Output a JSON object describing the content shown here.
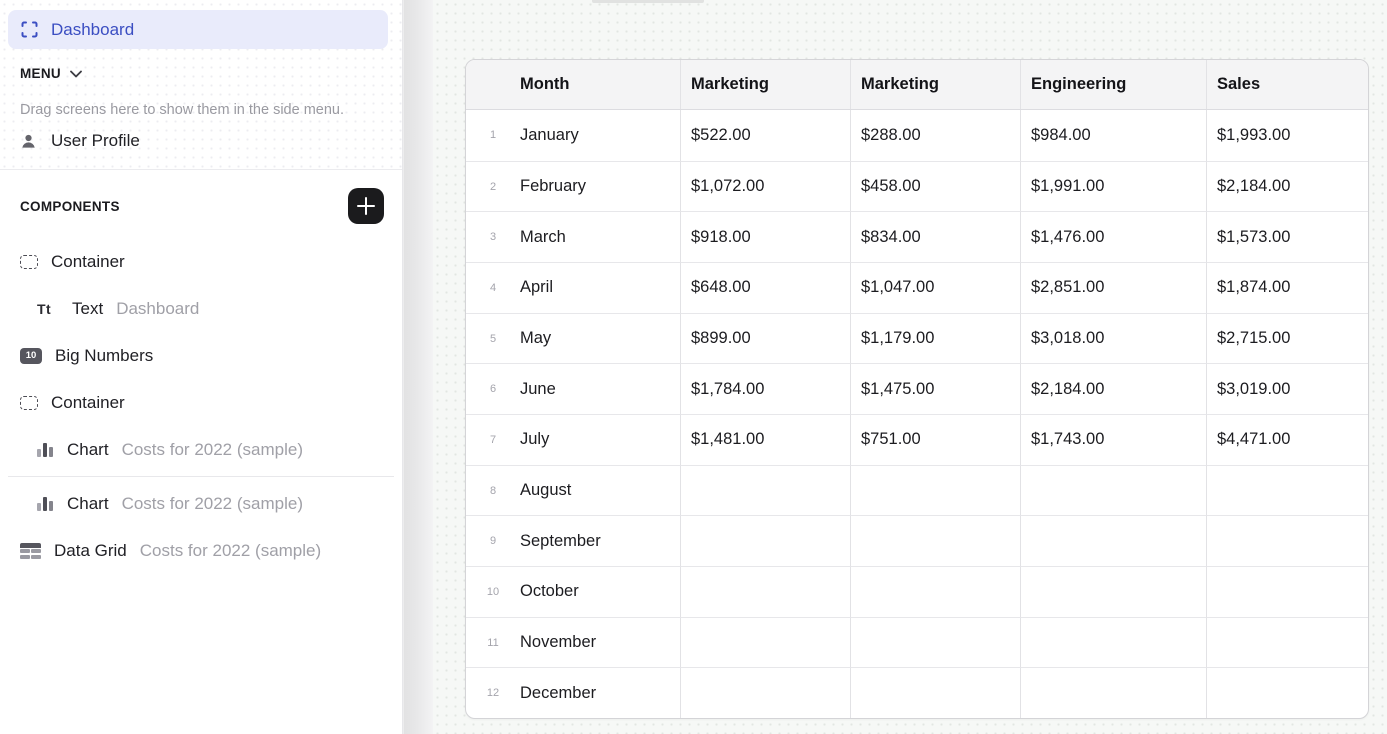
{
  "colors": {
    "accent_text": "#3b4ec2",
    "accent_bg": "#e9ebfb",
    "add_button_bg": "#1b1b1d",
    "canvas_bg": "#f6f8f6",
    "table_header_bg": "#f4f4f5"
  },
  "sidebar": {
    "selected_screen": {
      "label": "Dashboard",
      "icon": "screen-frame-icon"
    },
    "menu_section": {
      "title": "MENU",
      "chevron_icon": "chevron-down-icon",
      "helper": "Drag screens here to show them in the side menu.",
      "items": [
        {
          "label": "User Profile",
          "icon": "user-icon"
        }
      ]
    },
    "components_section": {
      "title": "COMPONENTS",
      "add_button_icon": "plus-icon",
      "items": [
        {
          "label": "Container",
          "secondary": "",
          "icon": "container-icon",
          "indent": 0
        },
        {
          "label": "Text",
          "secondary": "Dashboard",
          "icon": "text-icon",
          "indent": 1
        },
        {
          "label": "Big Numbers",
          "secondary": "",
          "icon": "big-numbers-icon",
          "indent": 0
        },
        {
          "label": "Container",
          "secondary": "",
          "icon": "container-icon",
          "indent": 0
        },
        {
          "label": "Chart",
          "secondary": "Costs for 2022 (sample)",
          "icon": "chart-icon",
          "indent": 1
        },
        {
          "divider": true
        },
        {
          "label": "Chart",
          "secondary": "Costs for 2022 (sample)",
          "icon": "chart-icon",
          "indent": 1
        },
        {
          "label": "Data Grid",
          "secondary": "Costs for 2022 (sample)",
          "icon": "data-grid-icon",
          "indent": 0
        }
      ],
      "big_numbers_badge": "10",
      "text_icon_glyph": "Tt"
    }
  },
  "canvas": {
    "table": {
      "columns": [
        "Month",
        "Marketing",
        "Marketing",
        "Engineering",
        "Sales"
      ],
      "rows": [
        {
          "num": "1",
          "month": "January",
          "values": [
            "$522.00",
            "$288.00",
            "$984.00",
            "$1,993.00"
          ]
        },
        {
          "num": "2",
          "month": "February",
          "values": [
            "$1,072.00",
            "$458.00",
            "$1,991.00",
            "$2,184.00"
          ]
        },
        {
          "num": "3",
          "month": "March",
          "values": [
            "$918.00",
            "$834.00",
            "$1,476.00",
            "$1,573.00"
          ]
        },
        {
          "num": "4",
          "month": "April",
          "values": [
            "$648.00",
            "$1,047.00",
            "$2,851.00",
            "$1,874.00"
          ]
        },
        {
          "num": "5",
          "month": "May",
          "values": [
            "$899.00",
            "$1,179.00",
            "$3,018.00",
            "$2,715.00"
          ]
        },
        {
          "num": "6",
          "month": "June",
          "values": [
            "$1,784.00",
            "$1,475.00",
            "$2,184.00",
            "$3,019.00"
          ]
        },
        {
          "num": "7",
          "month": "July",
          "values": [
            "$1,481.00",
            "$751.00",
            "$1,743.00",
            "$4,471.00"
          ]
        },
        {
          "num": "8",
          "month": "August",
          "values": [
            "",
            "",
            "",
            ""
          ]
        },
        {
          "num": "9",
          "month": "September",
          "values": [
            "",
            "",
            "",
            ""
          ]
        },
        {
          "num": "10",
          "month": "October",
          "values": [
            "",
            "",
            "",
            ""
          ]
        },
        {
          "num": "11",
          "month": "November",
          "values": [
            "",
            "",
            "",
            ""
          ]
        },
        {
          "num": "12",
          "month": "December",
          "values": [
            "",
            "",
            "",
            ""
          ]
        }
      ]
    }
  }
}
